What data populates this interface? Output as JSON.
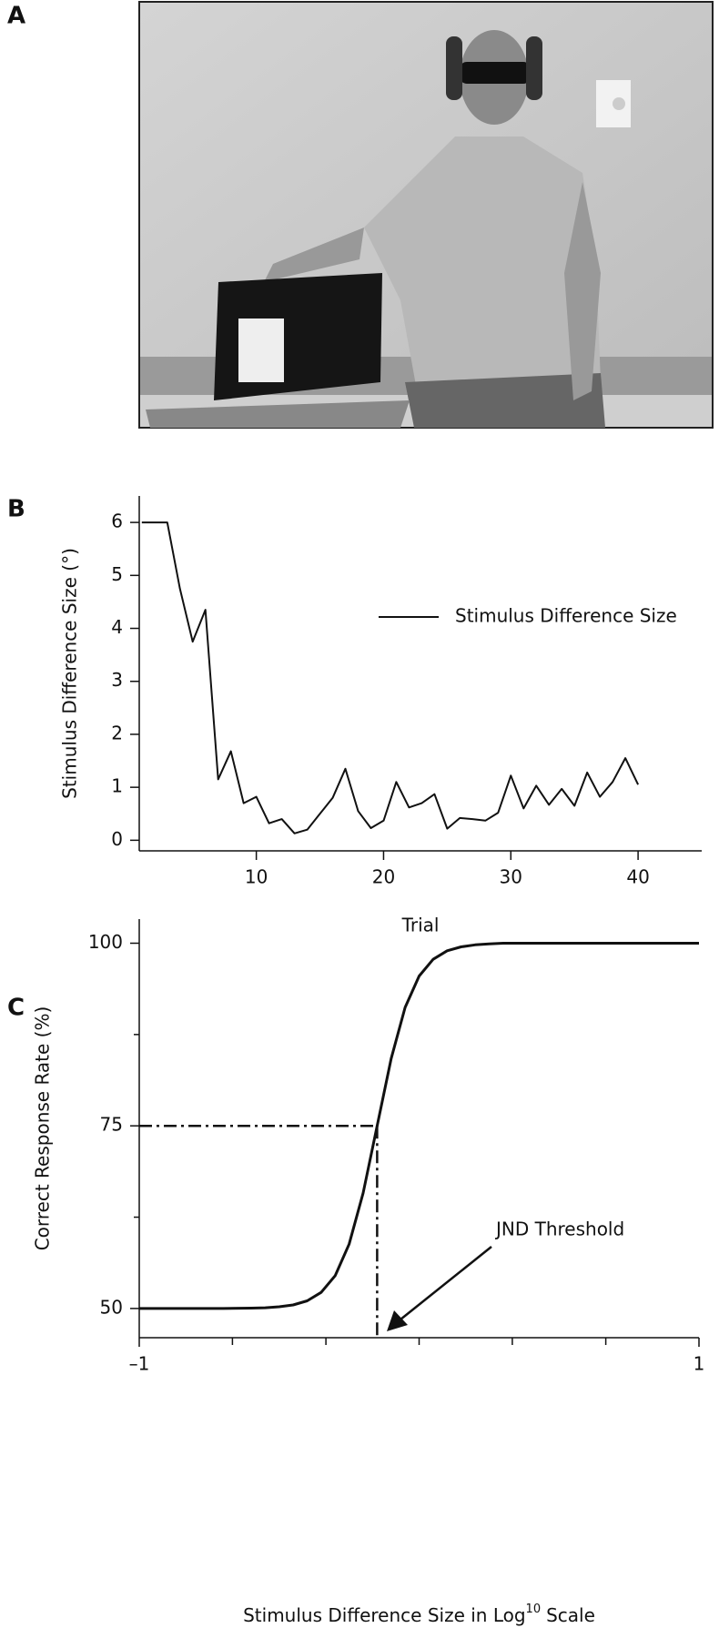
{
  "photo": {
    "panel_label": "A"
  },
  "chart_data": [
    {
      "type": "line",
      "panel_label": "B",
      "xlabel": "Trial",
      "ylabel": "Stimulus Difference Size (°)",
      "x": [
        1,
        2,
        3,
        4,
        5,
        6,
        7,
        8,
        9,
        10,
        11,
        12,
        13,
        14,
        15,
        16,
        17,
        18,
        19,
        20,
        21,
        22,
        23,
        24,
        25,
        26,
        27,
        28,
        29,
        30,
        31,
        32,
        33,
        34,
        35,
        36,
        37,
        38,
        39,
        40
      ],
      "series": [
        {
          "name": "Stimulus Difference Size",
          "color": "#111111",
          "values": [
            6,
            6,
            6,
            4.75,
            3.75,
            4.35,
            1.15,
            1.68,
            0.7,
            0.82,
            0.32,
            0.4,
            0.13,
            0.2,
            0.5,
            0.8,
            1.35,
            0.55,
            0.23,
            0.37,
            1.1,
            0.62,
            0.7,
            0.87,
            0.22,
            0.42,
            0.4,
            0.37,
            0.52,
            1.22,
            0.6,
            1.03,
            0.67,
            0.97,
            0.65,
            1.28,
            0.82,
            1.1,
            1.55,
            1.05
          ]
        }
      ],
      "xlim": [
        0.8,
        45
      ],
      "ylim": [
        -0.2,
        6.5
      ],
      "xticks": [
        10,
        20,
        30,
        40
      ],
      "yticks": [
        0,
        1,
        2,
        3,
        4,
        5,
        6
      ],
      "legend": "right"
    },
    {
      "type": "line",
      "panel_label": "C",
      "xlabel": [
        "Stimulus Difference Size in Log",
        "10",
        "Scale"
      ],
      "ylabel": "Correct Response Rate (%)",
      "x": [
        -1,
        -0.9,
        -0.8,
        -0.7,
        -0.6,
        -0.55,
        -0.5,
        -0.45,
        -0.4,
        -0.35,
        -0.3,
        -0.25,
        -0.2,
        -0.15,
        -0.1,
        -0.05,
        0,
        0.05,
        0.1,
        0.15,
        0.2,
        0.25,
        0.3,
        0.5,
        0.7,
        1
      ],
      "values": [
        50,
        50,
        50,
        50,
        50.05,
        50.1,
        50.23,
        50.49,
        51.04,
        52.2,
        54.5,
        58.8,
        65.8,
        75,
        84.2,
        91.2,
        95.5,
        97.8,
        98.96,
        99.5,
        99.77,
        99.9,
        100,
        100,
        100,
        100
      ],
      "color": "#111111",
      "xlim": [
        -1,
        1
      ],
      "ylim": [
        46,
        103.3
      ],
      "xticks": [
        {
          "value": -1,
          "label": "–1"
        },
        1
      ],
      "yticks": [
        50,
        75,
        100
      ],
      "minor_xticks": [
        -0.667,
        -0.333,
        0,
        0.333,
        0.667
      ],
      "minor_yticks": [
        62.5,
        87.5
      ],
      "threshold": {
        "x": -0.15,
        "y": 75
      },
      "annotation": "JND Threshold"
    }
  ]
}
